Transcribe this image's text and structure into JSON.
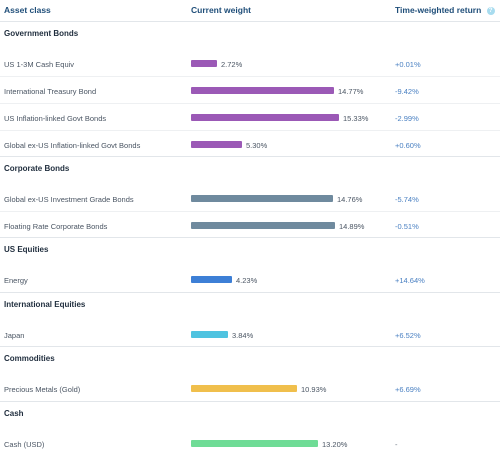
{
  "header": {
    "asset_class": "Asset class",
    "current_weight": "Current weight",
    "time_weighted_return": "Time-weighted return",
    "help_icon": "?"
  },
  "groups": [
    {
      "title": "Government Bonds",
      "rows": [
        {
          "name": "US 1-3M Cash Equiv",
          "weight": 2.72,
          "weight_label": "2.72%",
          "ret": "+0.01%",
          "color": "#9b59b6"
        },
        {
          "name": "International Treasury Bond",
          "weight": 14.77,
          "weight_label": "14.77%",
          "ret": "-9.42%",
          "color": "#9b59b6"
        },
        {
          "name": "US Inflation-linked Govt Bonds",
          "weight": 15.33,
          "weight_label": "15.33%",
          "ret": "-2.99%",
          "color": "#9b59b6"
        },
        {
          "name": "Global ex-US Inflation-linked Govt Bonds",
          "weight": 5.3,
          "weight_label": "5.30%",
          "ret": "+0.60%",
          "color": "#9b59b6"
        }
      ]
    },
    {
      "title": "Corporate Bonds",
      "rows": [
        {
          "name": "Global ex-US Investment Grade Bonds",
          "weight": 14.76,
          "weight_label": "14.76%",
          "ret": "-5.74%",
          "color": "#6f8a9e"
        },
        {
          "name": "Floating Rate Corporate Bonds",
          "weight": 14.89,
          "weight_label": "14.89%",
          "ret": "-0.51%",
          "color": "#6f8a9e"
        }
      ]
    },
    {
      "title": "US Equities",
      "rows": [
        {
          "name": "Energy",
          "weight": 4.23,
          "weight_label": "4.23%",
          "ret": "+14.64%",
          "color": "#3d7fd6"
        }
      ]
    },
    {
      "title": "International Equities",
      "rows": [
        {
          "name": "Japan",
          "weight": 3.84,
          "weight_label": "3.84%",
          "ret": "+6.52%",
          "color": "#4fc3e0"
        }
      ]
    },
    {
      "title": "Commodities",
      "rows": [
        {
          "name": "Precious Metals (Gold)",
          "weight": 10.93,
          "weight_label": "10.93%",
          "ret": "+6.69%",
          "color": "#f0bf4c"
        }
      ]
    },
    {
      "title": "Cash",
      "rows": [
        {
          "name": "Cash (USD)",
          "weight": 13.2,
          "weight_label": "13.20%",
          "ret": "-",
          "color": "#6fdc96"
        }
      ]
    }
  ]
}
